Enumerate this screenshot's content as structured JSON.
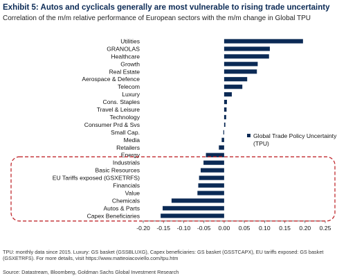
{
  "header": {
    "title": "Exhibit 5: Autos and cyclicals generally are most vulnerable to rising trade uncertainty",
    "subtitle": "Correlation of the m/m relative performance of European sectors with the m/m change in Global TPU"
  },
  "chart_data": {
    "type": "bar",
    "orientation": "horizontal",
    "categories": [
      "Utilities",
      "GRANOLAS",
      "Healthcare",
      "Growth",
      "Real Estate",
      "Aerospace & Defence",
      "Telecom",
      "Luxury",
      "Cons. Staples",
      "Travel & Leisure",
      "Technology",
      "Consumer Prd & Svs",
      "Small Cap.",
      "Media",
      "Retailers",
      "Energy",
      "Industrials",
      "Basic Resources",
      "EU Tariffs exposed (GSXETRFS)",
      "Financials",
      "Value",
      "Chemicals",
      "Autos & Parts",
      "Capex Beneficiaries"
    ],
    "series": [
      {
        "name": "Global Trade Policy Uncertainty (TPU)",
        "values": [
          0.195,
          0.113,
          0.111,
          0.083,
          0.081,
          0.057,
          0.045,
          0.019,
          0.007,
          0.006,
          0.005,
          0.003,
          -0.002,
          -0.006,
          -0.013,
          -0.045,
          -0.051,
          -0.058,
          -0.062,
          -0.064,
          -0.066,
          -0.13,
          -0.152,
          -0.157
        ],
        "color": "#0b2a55"
      }
    ],
    "xlim": [
      -0.2,
      0.25
    ],
    "xticks": [
      "-0.20",
      "-0.15",
      "-0.10",
      "-0.05",
      "0.00",
      "0.05",
      "0.10",
      "0.15",
      "0.20",
      "0.25"
    ],
    "xlabel": "",
    "ylabel": "",
    "grid": false,
    "legend_position": "right",
    "highlight": {
      "style": "dashed red rounded box",
      "color": "#c0282d",
      "from": "Industrials",
      "to": "Capex Beneficiaries"
    }
  },
  "footer": {
    "note": "TPU: monthly data since 2015. Luxury: GS basket (GSSBLUXG), Capex beneficiaries: GS basket (GSSTCAPX), EU tariffs exposed: GS basket (GSXETRFS). For more details, visit https://www.matteoiacoviello.com/tpu.htm",
    "source": "Source: Datastream, Bloomberg, Goldman Sachs Global Investment Research"
  }
}
